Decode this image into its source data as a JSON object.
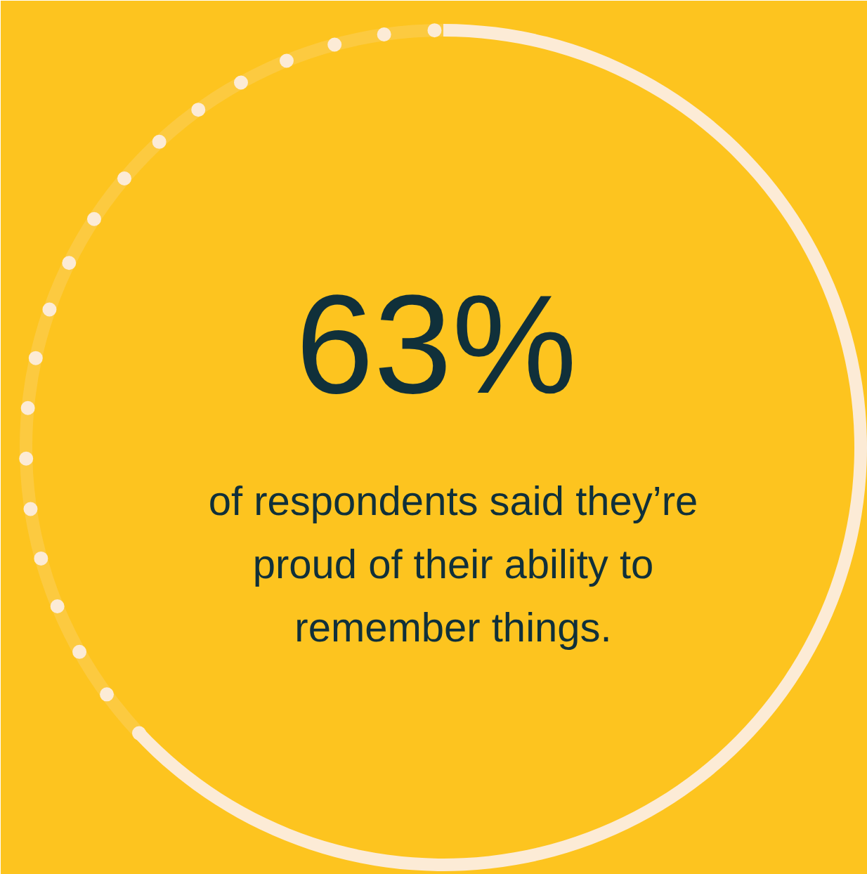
{
  "chart_data": {
    "type": "donut",
    "categories": [
      null,
      null
    ],
    "values": [
      63,
      37
    ],
    "colors": [
      "#fcebd6",
      "#fcebd6"
    ],
    "title": "63%",
    "subtitle": "of respondents said they’re proud of their ability to remember things."
  }
}
